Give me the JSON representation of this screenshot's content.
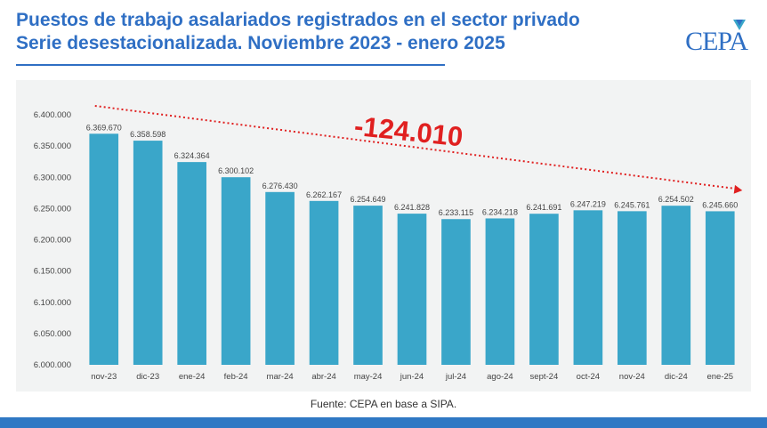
{
  "header": {
    "title_line1": "Puestos de trabajo asalariados registrados en el sector privado",
    "title_line2": "Serie desestacionalizada. Noviembre 2023 - enero 2025"
  },
  "logo": {
    "text": "CEPA"
  },
  "footer": {
    "source": "Fuente: CEPA en base a SIPA."
  },
  "colors": {
    "title": "#2f6fc4",
    "bar": "#3aa6c9",
    "annotation": "#e02020",
    "panel": "#f2f3f3",
    "bottom_bar": "#2f78c4"
  },
  "chart_data": {
    "type": "bar",
    "categories": [
      "nov-23",
      "dic-23",
      "ene-24",
      "feb-24",
      "mar-24",
      "abr-24",
      "may-24",
      "jun-24",
      "jul-24",
      "ago-24",
      "sept-24",
      "oct-24",
      "nov-24",
      "dic-24",
      "ene-25"
    ],
    "values": [
      6369670,
      6358598,
      6324364,
      6300102,
      6276430,
      6262167,
      6254649,
      6241828,
      6233115,
      6234218,
      6241691,
      6247219,
      6245761,
      6254502,
      6245660
    ],
    "value_labels": [
      "6.369.670",
      "6.358.598",
      "6.324.364",
      "6.300.102",
      "6.276.430",
      "6.262.167",
      "6.254.649",
      "6.241.828",
      "6.233.115",
      "6.234.218",
      "6.241.691",
      "6.247.219",
      "6.245.761",
      "6.254.502",
      "6.245.660"
    ],
    "ylim": [
      6000000,
      6400000
    ],
    "yticks": [
      6000000,
      6050000,
      6100000,
      6150000,
      6200000,
      6250000,
      6300000,
      6350000,
      6400000
    ],
    "ytick_labels": [
      "6.000.000",
      "6.050.000",
      "6.100.000",
      "6.150.000",
      "6.200.000",
      "6.250.000",
      "6.300.000",
      "6.350.000",
      "6.400.000"
    ],
    "grid": false,
    "annotation": {
      "text": "-124.010",
      "from_category": "nov-23",
      "to_category": "ene-25"
    }
  }
}
